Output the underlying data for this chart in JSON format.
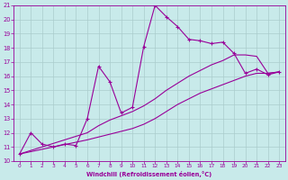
{
  "xlabel": "Windchill (Refroidissement éolien,°C)",
  "bg_color": "#c8eaea",
  "line_color": "#990099",
  "grid_color": "#aacccc",
  "xlim": [
    -0.5,
    23.5
  ],
  "ylim": [
    10,
    21
  ],
  "xticks": [
    0,
    1,
    2,
    3,
    4,
    5,
    6,
    7,
    8,
    9,
    10,
    11,
    12,
    13,
    14,
    15,
    16,
    17,
    18,
    19,
    20,
    21,
    22,
    23
  ],
  "yticks": [
    10,
    11,
    12,
    13,
    14,
    15,
    16,
    17,
    18,
    19,
    20,
    21
  ],
  "line1_x": [
    0,
    1,
    2,
    3,
    4,
    5,
    6,
    7,
    8,
    9,
    10,
    11,
    12,
    13,
    14,
    15,
    16,
    17,
    18,
    19,
    20,
    21,
    22,
    23
  ],
  "line1_y": [
    10.5,
    12.0,
    11.2,
    11.0,
    11.2,
    11.1,
    13.0,
    16.7,
    15.6,
    13.4,
    13.8,
    18.1,
    21.0,
    20.2,
    19.5,
    18.6,
    18.5,
    18.3,
    18.4,
    17.6,
    16.2,
    16.5,
    16.1,
    16.3
  ],
  "line2_x": [
    0,
    6,
    7,
    8,
    9,
    10,
    11,
    12,
    13,
    14,
    15,
    16,
    17,
    18,
    19,
    20,
    21,
    22,
    23
  ],
  "line2_y": [
    10.5,
    12.0,
    12.5,
    12.9,
    13.2,
    13.5,
    13.9,
    14.4,
    15.0,
    15.5,
    16.0,
    16.4,
    16.8,
    17.1,
    17.5,
    17.5,
    17.4,
    16.2,
    16.3
  ],
  "line3_x": [
    0,
    6,
    7,
    8,
    9,
    10,
    11,
    12,
    13,
    14,
    15,
    16,
    17,
    18,
    19,
    20,
    21,
    22,
    23
  ],
  "line3_y": [
    10.5,
    11.5,
    11.7,
    11.9,
    12.1,
    12.3,
    12.6,
    13.0,
    13.5,
    14.0,
    14.4,
    14.8,
    15.1,
    15.4,
    15.7,
    16.0,
    16.2,
    16.2,
    16.3
  ]
}
